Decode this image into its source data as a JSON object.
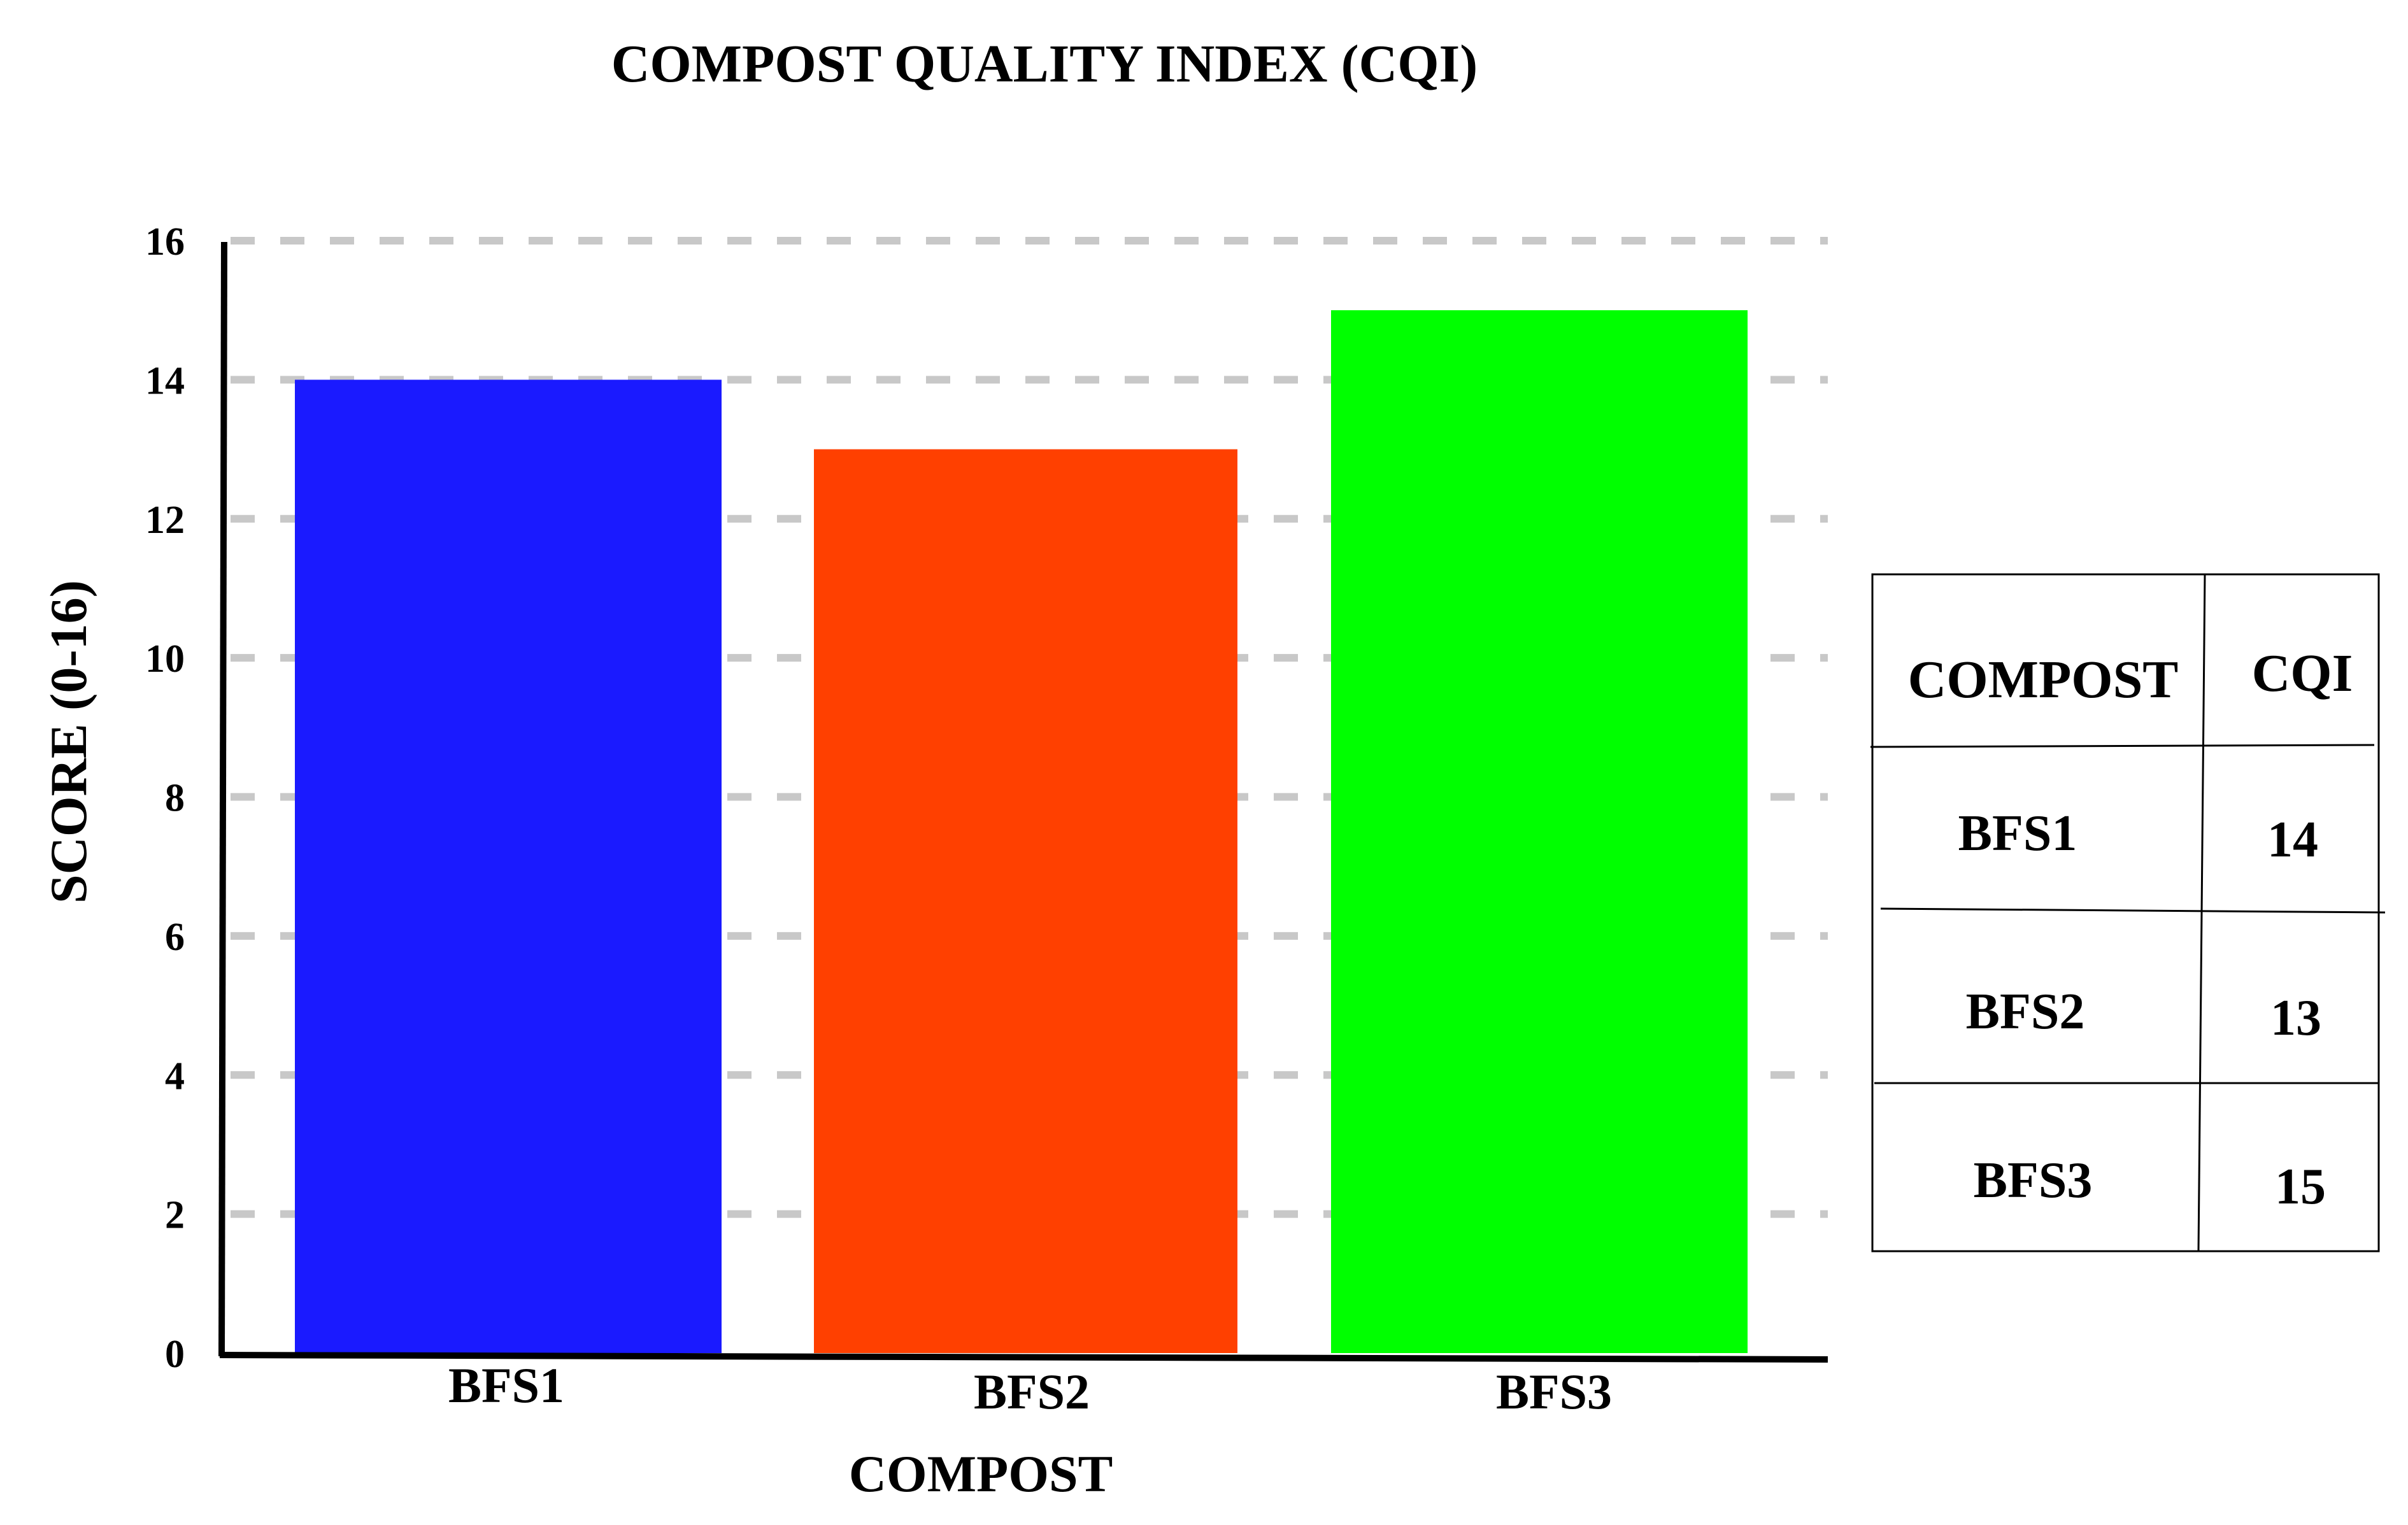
{
  "chart_data": {
    "type": "bar",
    "title": "COMPOST QUALITY INDEX (CQI)",
    "xlabel": "COMPOST",
    "ylabel": "SCORE (0-16)",
    "categories": [
      "BFS1",
      "BFS2",
      "BFS3"
    ],
    "values": [
      14,
      13,
      15
    ],
    "colors": [
      "#1a1aff",
      "#ff4000",
      "#00ff00"
    ],
    "ylim": [
      0,
      16
    ],
    "yticks": [
      "0",
      "2",
      "4",
      "6",
      "8",
      "10",
      "12",
      "14",
      "16"
    ],
    "grid": true,
    "grid_style": "dashed"
  },
  "table": {
    "headers": [
      "COMPOST",
      "CQI"
    ],
    "rows": [
      [
        "BFS1",
        "14"
      ],
      [
        "BFS2",
        "13"
      ],
      [
        "BFS3",
        "15"
      ]
    ]
  }
}
